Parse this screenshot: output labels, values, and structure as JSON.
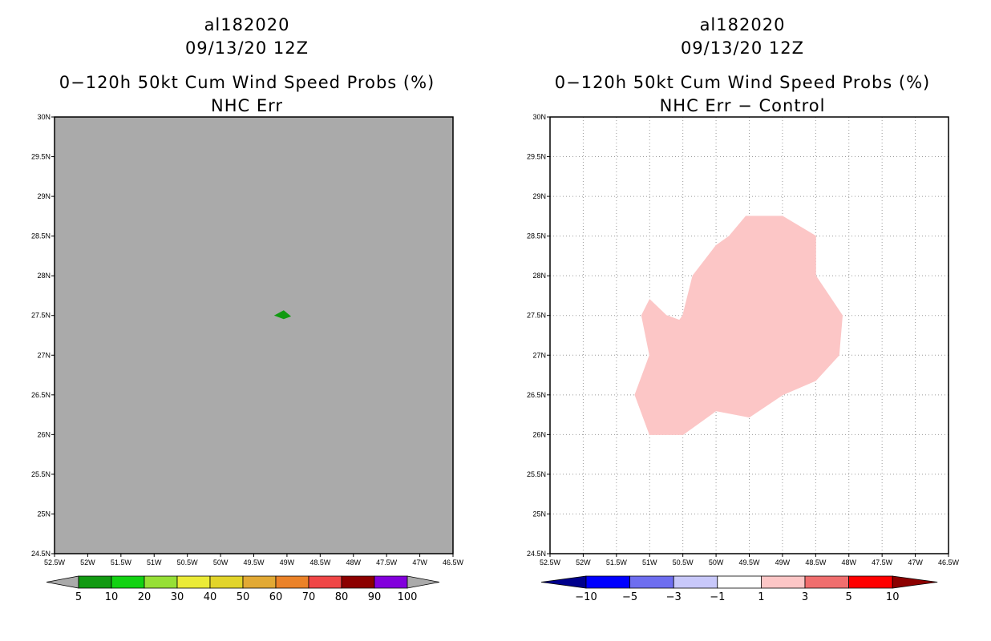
{
  "chart_data": [
    {
      "type": "map-contour",
      "title_lines": [
        "al182020",
        "09/13/20 12Z",
        "0−120h 50kt Cum Wind Speed Probs (%)",
        "NHC Err"
      ],
      "xlim": [
        -52.5,
        -46.5
      ],
      "ylim": [
        24.5,
        30
      ],
      "x_ticks": [
        -52.5,
        -52,
        -51.5,
        -51,
        -50.5,
        -50,
        -49.5,
        -49,
        -48.5,
        -48,
        -47.5,
        -47,
        -46.5
      ],
      "x_tick_labels": [
        "52.5W",
        "52W",
        "51.5W",
        "51W",
        "50.5W",
        "50W",
        "49.5W",
        "49W",
        "48.5W",
        "48W",
        "47.5W",
        "47W",
        "46.5W"
      ],
      "y_ticks": [
        24.5,
        25,
        25.5,
        26,
        26.5,
        27,
        27.5,
        28,
        28.5,
        29,
        29.5,
        30
      ],
      "y_tick_labels": [
        "24.5N",
        "25N",
        "25.5N",
        "26N",
        "26.5N",
        "27N",
        "27.5N",
        "28N",
        "28.5N",
        "29N",
        "29.5N",
        "30N"
      ],
      "background": "#aaaaaa",
      "grid": false,
      "regions": [
        {
          "name": "5-10%",
          "color": "#129a12",
          "lonlat": [
            [
              -49.18,
              27.5
            ],
            [
              -49.05,
              27.56
            ],
            [
              -48.95,
              27.49
            ],
            [
              -49.05,
              27.46
            ]
          ]
        }
      ],
      "colorbar": {
        "labels": [
          "5",
          "10",
          "20",
          "30",
          "40",
          "50",
          "60",
          "70",
          "80",
          "90",
          "100"
        ],
        "colors": [
          "#129a12",
          "#12d212",
          "#96e036",
          "#ebeb37",
          "#e2d42a",
          "#e2a934",
          "#eb8228",
          "#f04646",
          "#8c0000",
          "#8200dc"
        ],
        "extend_color": "#aaaaaa"
      }
    },
    {
      "type": "map-contour",
      "title_lines": [
        "al182020",
        "09/13/20 12Z",
        "0−120h 50kt Cum Wind Speed Probs (%)",
        "NHC Err − Control"
      ],
      "xlim": [
        -52.5,
        -46.5
      ],
      "ylim": [
        24.5,
        30
      ],
      "x_ticks": [
        -52.5,
        -52,
        -51.5,
        -51,
        -50.5,
        -50,
        -49.5,
        -49,
        -48.5,
        -48,
        -47.5,
        -47,
        -46.5
      ],
      "x_tick_labels": [
        "52.5W",
        "52W",
        "51.5W",
        "51W",
        "50.5W",
        "50W",
        "49.5W",
        "49W",
        "48.5W",
        "48W",
        "47.5W",
        "47W",
        "46.5W"
      ],
      "y_ticks": [
        24.5,
        25,
        25.5,
        26,
        26.5,
        27,
        27.5,
        28,
        28.5,
        29,
        29.5,
        30
      ],
      "y_tick_labels": [
        "24.5N",
        "25N",
        "25.5N",
        "26N",
        "26.5N",
        "27N",
        "27.5N",
        "28N",
        "28.5N",
        "29N",
        "29.5N",
        "30N"
      ],
      "background": "#ffffff",
      "grid": true,
      "regions": [
        {
          "name": "1-3%",
          "color": "#fcc6c6",
          "lonlat": [
            [
              -49.55,
              28.75
            ],
            [
              -49.0,
              28.75
            ],
            [
              -48.5,
              28.5
            ],
            [
              -48.5,
              28.0
            ],
            [
              -48.1,
              27.5
            ],
            [
              -48.15,
              27.0
            ],
            [
              -48.5,
              26.68
            ],
            [
              -49.0,
              26.5
            ],
            [
              -49.5,
              26.22
            ],
            [
              -50.0,
              26.3
            ],
            [
              -50.5,
              26.0
            ],
            [
              -51.0,
              26.0
            ],
            [
              -51.22,
              26.5
            ],
            [
              -51.0,
              27.0
            ],
            [
              -51.12,
              27.5
            ],
            [
              -51.0,
              27.7
            ],
            [
              -50.75,
              27.5
            ],
            [
              -50.55,
              27.44
            ],
            [
              -50.5,
              27.5
            ],
            [
              -50.35,
              28.0
            ],
            [
              -50.0,
              28.38
            ],
            [
              -49.8,
              28.5
            ]
          ]
        }
      ],
      "colorbar": {
        "labels": [
          "−10",
          "−5",
          "−3",
          "−1",
          "1",
          "3",
          "5",
          "10"
        ],
        "colors": [
          "#0000ff",
          "#6e6ef0",
          "#c8c8fa",
          "#ffffff",
          "#fcc6c6",
          "#f06e6e",
          "#ff0000"
        ],
        "low_extend_color": "#00008c",
        "high_extend_color": "#8c0000"
      }
    }
  ]
}
